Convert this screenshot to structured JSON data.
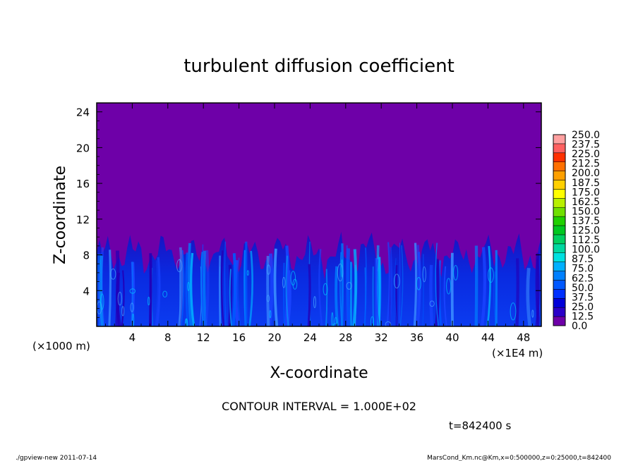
{
  "chart_data": {
    "type": "heatmap",
    "title": "turbulent diffusion coefficient",
    "xlabel": "X-coordinate",
    "ylabel": "Z-coordinate",
    "x_unit_left": "(×1000 m)",
    "x_unit_right": "(×1E4 m)",
    "xlim": [
      0,
      50
    ],
    "ylim": [
      0,
      25
    ],
    "x_ticks": [
      "4",
      "8",
      "12",
      "16",
      "20",
      "24",
      "28",
      "32",
      "36",
      "40",
      "44",
      "48"
    ],
    "y_ticks": [
      "4",
      "8",
      "12",
      "16",
      "20",
      "24"
    ],
    "colorbar_levels": [
      "0.0",
      "12.5",
      "25.0",
      "37.5",
      "50.0",
      "62.5",
      "75.0",
      "87.5",
      "100.0",
      "112.5",
      "125.0",
      "137.5",
      "150.0",
      "162.5",
      "175.0",
      "187.5",
      "200.0",
      "212.5",
      "225.0",
      "237.5",
      "250.0"
    ],
    "colorbar_colors": [
      "#6e00a8",
      "#2a00c8",
      "#0000d8",
      "#0030ff",
      "#0058ff",
      "#0080ff",
      "#00b0ff",
      "#00e0e0",
      "#00d8a0",
      "#00d060",
      "#00c820",
      "#20d000",
      "#70e000",
      "#b8f000",
      "#ffff00",
      "#ffd000",
      "#ffa000",
      "#ff7000",
      "#ff3000",
      "#ff6060",
      "#ffa0a0"
    ],
    "background_color": "#6e00a8",
    "turbulent_layer_top_approx": 9,
    "contour_interval_text": "CONTOUR INTERVAL = 1.000E+02",
    "time_text": "t=842400 s"
  },
  "footer": {
    "left": "./gpview-new   2011-07-14",
    "right": "MarsCond_Km.nc@Km,x=0:500000,z=0:25000,t=842400"
  }
}
